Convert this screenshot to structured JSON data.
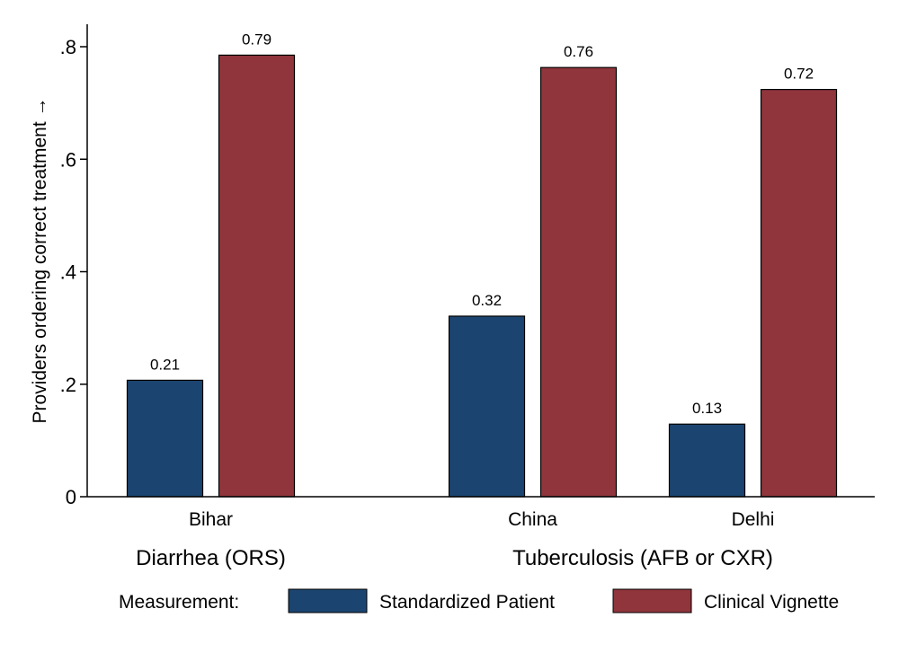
{
  "chart_data": {
    "type": "bar",
    "ylabel": "Providers ordering correct treatment →",
    "ylim": [
      0,
      0.84
    ],
    "yticks": [
      {
        "value": 0,
        "label": "0"
      },
      {
        "value": 0.2,
        "label": ".2"
      },
      {
        "value": 0.4,
        "label": ".4"
      },
      {
        "value": 0.6,
        "label": ".6"
      },
      {
        "value": 0.8,
        "label": ".8"
      }
    ],
    "grid": false,
    "groups": [
      {
        "label": "Diarrhea (ORS)",
        "categories": [
          "Bihar"
        ]
      },
      {
        "label": "Tuberculosis (AFB or CXR)",
        "categories": [
          "China",
          "Delhi"
        ]
      }
    ],
    "categories": [
      "Bihar",
      "China",
      "Delhi"
    ],
    "series": [
      {
        "name": "Standardized Patient",
        "color": "#1b4570",
        "values": [
          0.207,
          0.321,
          0.129
        ],
        "labels": [
          "0.21",
          "0.32",
          "0.13"
        ]
      },
      {
        "name": "Clinical Vignette",
        "color": "#8f353b",
        "values": [
          0.785,
          0.763,
          0.724
        ],
        "labels": [
          "0.79",
          "0.76",
          "0.72"
        ]
      }
    ],
    "legend": {
      "title": "Measurement:",
      "placement": "bottom"
    }
  }
}
